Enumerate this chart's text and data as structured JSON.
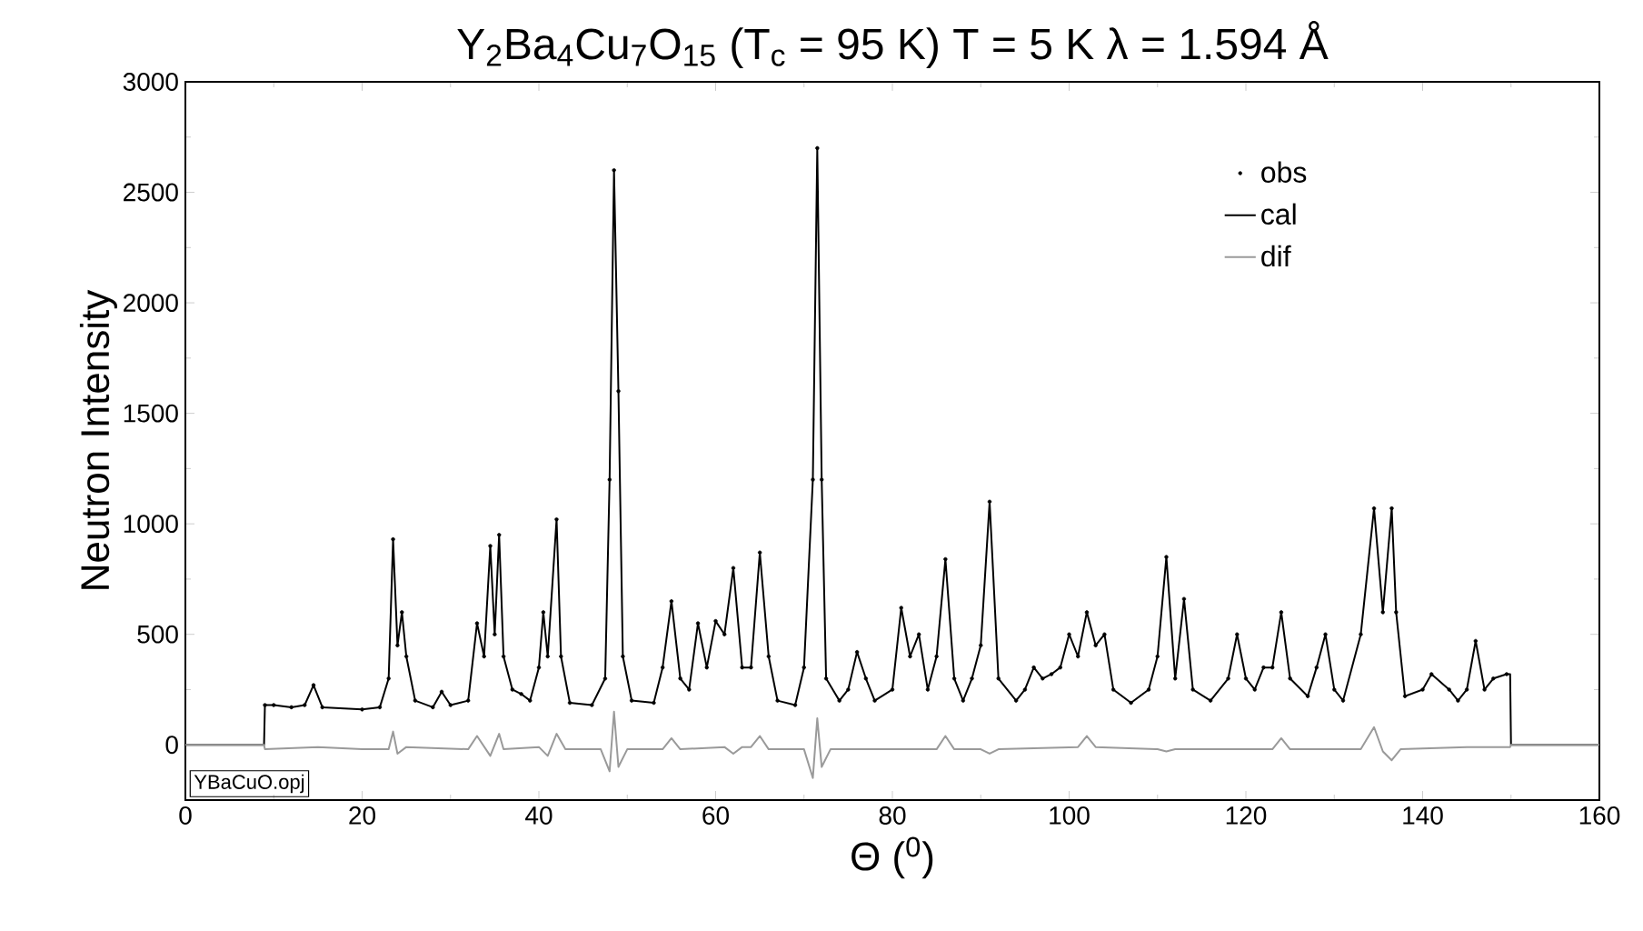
{
  "chart_data": {
    "type": "line",
    "title": "Y$_{2}$Ba$_{4}$Cu$_{7}$O$_{15}$    (T$_{c}$ = 95 K)    T = 5 K    λ = 1.594 Å",
    "xlabel": "Θ ($^{0}$)",
    "ylabel": "Neutron Intensity",
    "annotations": [
      "YBaCuO.opj"
    ],
    "xlim": [
      0,
      160
    ],
    "ylim": [
      -250,
      3000
    ],
    "xticks": [
      0,
      20,
      40,
      60,
      80,
      100,
      120,
      140,
      160
    ],
    "yticks": [
      0,
      500,
      1000,
      1500,
      2000,
      2500,
      3000
    ],
    "legend": "top right",
    "series": [
      {
        "name": "obs",
        "type": "scatter",
        "marker": "circle",
        "color": "#000000",
        "x": [
          9,
          10,
          12,
          13.5,
          14.5,
          15.5,
          20,
          22,
          23,
          23.5,
          24,
          24.5,
          25,
          26,
          28,
          29,
          30,
          32,
          33,
          33.8,
          34.5,
          35,
          35.5,
          36,
          37,
          38,
          39,
          40,
          40.5,
          41,
          42,
          42.5,
          43.5,
          46,
          47.5,
          48,
          48.5,
          49,
          49.5,
          50.5,
          53,
          54,
          55,
          56,
          57,
          58,
          59,
          60,
          61,
          62,
          63,
          64,
          65,
          66,
          67,
          69,
          70,
          71,
          71.5,
          72,
          72.5,
          74,
          75,
          76,
          77,
          78,
          80,
          81,
          82,
          83,
          84,
          85,
          86,
          87,
          88,
          89,
          90,
          91,
          92,
          94,
          95,
          96,
          97,
          98,
          99,
          100,
          101,
          102,
          103,
          104,
          105,
          107,
          109,
          110,
          111,
          112,
          113,
          114,
          116,
          118,
          119,
          120,
          121,
          122,
          123,
          124,
          125,
          127,
          128,
          129,
          130,
          131,
          133,
          134.5,
          135.5,
          136.5,
          137,
          138,
          140,
          141,
          143,
          144,
          145,
          146,
          147,
          148,
          149.5
        ],
        "values": [
          180,
          180,
          170,
          180,
          270,
          170,
          160,
          170,
          300,
          930,
          450,
          600,
          400,
          200,
          170,
          240,
          180,
          200,
          550,
          400,
          900,
          500,
          950,
          400,
          250,
          230,
          200,
          350,
          600,
          400,
          1020,
          400,
          190,
          180,
          300,
          1200,
          2600,
          1600,
          400,
          200,
          190,
          350,
          650,
          300,
          250,
          550,
          350,
          560,
          500,
          800,
          350,
          350,
          870,
          400,
          200,
          180,
          350,
          1200,
          2700,
          1200,
          300,
          200,
          250,
          420,
          300,
          200,
          250,
          620,
          400,
          500,
          250,
          400,
          840,
          300,
          200,
          300,
          450,
          1100,
          300,
          200,
          250,
          350,
          300,
          320,
          350,
          500,
          400,
          600,
          450,
          500,
          250,
          190,
          250,
          400,
          850,
          300,
          660,
          250,
          200,
          300,
          500,
          300,
          250,
          350,
          350,
          600,
          300,
          220,
          350,
          500,
          250,
          200,
          500,
          1070,
          600,
          1070,
          600,
          220,
          250,
          320,
          250,
          200,
          250,
          470,
          250,
          300,
          320
        ]
      },
      {
        "name": "cal",
        "type": "line",
        "color": "#000000",
        "x": [
          0,
          8.9,
          9,
          10,
          12,
          13.5,
          14.5,
          15.5,
          20,
          22,
          23,
          23.5,
          24,
          24.5,
          25,
          26,
          28,
          29,
          30,
          32,
          33,
          33.8,
          34.5,
          35,
          35.5,
          36,
          37,
          38,
          39,
          40,
          40.5,
          41,
          42,
          42.5,
          43.5,
          46,
          47.5,
          48,
          48.5,
          49,
          49.5,
          50.5,
          53,
          54,
          55,
          56,
          57,
          58,
          59,
          60,
          61,
          62,
          63,
          64,
          65,
          66,
          67,
          69,
          70,
          71,
          71.5,
          72,
          72.5,
          74,
          75,
          76,
          77,
          78,
          80,
          81,
          82,
          83,
          84,
          85,
          86,
          87,
          88,
          89,
          90,
          91,
          92,
          94,
          95,
          96,
          97,
          98,
          99,
          100,
          101,
          102,
          103,
          104,
          105,
          107,
          109,
          110,
          111,
          112,
          113,
          114,
          116,
          118,
          119,
          120,
          121,
          122,
          123,
          124,
          125,
          127,
          128,
          129,
          130,
          131,
          133,
          134.5,
          135.5,
          136.5,
          137,
          138,
          140,
          141,
          143,
          144,
          145,
          146,
          147,
          148,
          149.5,
          149.9,
          150,
          160
        ],
        "values": [
          0,
          0,
          180,
          180,
          170,
          180,
          270,
          170,
          160,
          170,
          300,
          930,
          450,
          600,
          400,
          200,
          170,
          240,
          180,
          200,
          550,
          400,
          900,
          500,
          950,
          400,
          250,
          230,
          200,
          350,
          600,
          400,
          1020,
          400,
          190,
          180,
          300,
          1200,
          2600,
          1600,
          400,
          200,
          190,
          350,
          650,
          300,
          250,
          550,
          350,
          560,
          500,
          800,
          350,
          350,
          870,
          400,
          200,
          180,
          350,
          1200,
          2700,
          1200,
          300,
          200,
          250,
          420,
          300,
          200,
          250,
          620,
          400,
          500,
          250,
          400,
          840,
          300,
          200,
          300,
          450,
          1100,
          300,
          200,
          250,
          350,
          300,
          320,
          350,
          500,
          400,
          600,
          450,
          500,
          250,
          190,
          250,
          400,
          850,
          300,
          660,
          250,
          200,
          300,
          500,
          300,
          250,
          350,
          350,
          600,
          300,
          220,
          350,
          500,
          250,
          200,
          500,
          1070,
          600,
          1070,
          600,
          220,
          250,
          320,
          250,
          200,
          250,
          470,
          250,
          300,
          320,
          320,
          0,
          0
        ]
      },
      {
        "name": "dif",
        "type": "line",
        "color": "#9a9a9a",
        "x": [
          0,
          8.9,
          9,
          15,
          20,
          23,
          23.5,
          24,
          25,
          32,
          33,
          34.5,
          35.5,
          36,
          40,
          41,
          42,
          43,
          47,
          48,
          48.5,
          49,
          50,
          54,
          55,
          56,
          61,
          62,
          63,
          64,
          65,
          66,
          70,
          71,
          71.5,
          72,
          73,
          85,
          86,
          87,
          90,
          91,
          92,
          101,
          102,
          103,
          110,
          111,
          112,
          123,
          124,
          125,
          133,
          134.5,
          135.5,
          136.5,
          137.5,
          145,
          149.9,
          150,
          160
        ],
        "values": [
          0,
          0,
          -20,
          -10,
          -20,
          -20,
          60,
          -40,
          -10,
          -20,
          40,
          -50,
          50,
          -20,
          -10,
          -50,
          50,
          -20,
          -20,
          -120,
          150,
          -100,
          -20,
          -20,
          30,
          -20,
          -10,
          -40,
          -10,
          -10,
          40,
          -20,
          -20,
          -150,
          120,
          -100,
          -20,
          -20,
          40,
          -20,
          -20,
          -40,
          -20,
          -10,
          40,
          -10,
          -20,
          -30,
          -20,
          -20,
          30,
          -20,
          -20,
          80,
          -30,
          -70,
          -20,
          -10,
          -10,
          0,
          0
        ]
      }
    ]
  }
}
